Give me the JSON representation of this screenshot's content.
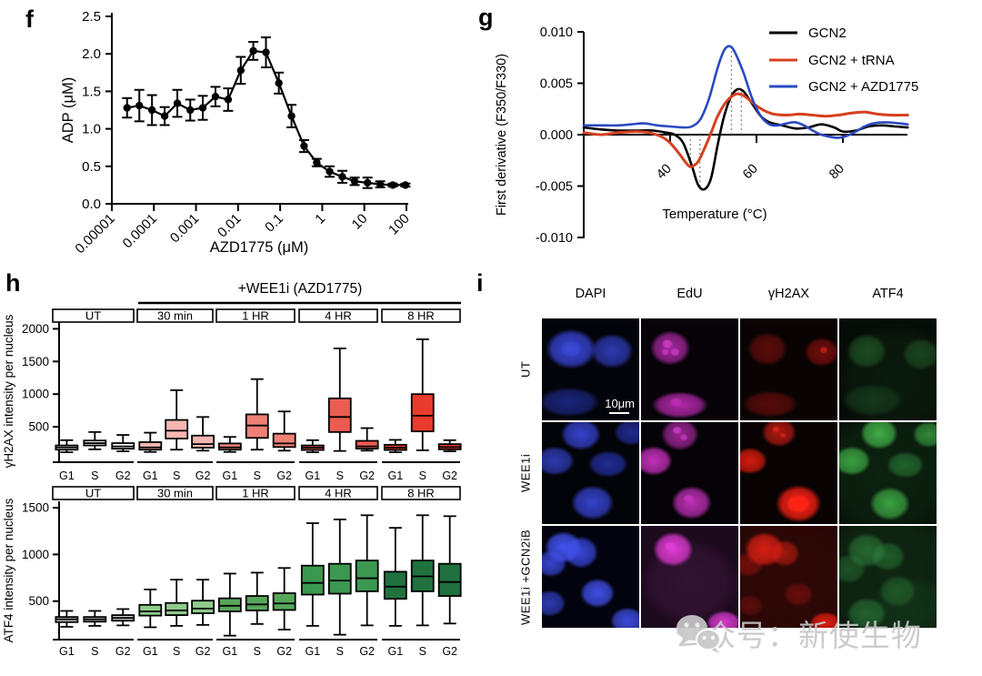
{
  "figure": {
    "panels": {
      "f": {
        "letter": "f"
      },
      "g": {
        "letter": "g"
      },
      "h": {
        "letter": "h"
      },
      "i": {
        "letter": "i"
      }
    }
  },
  "chart_data": [
    {
      "id": "f",
      "type": "scatter",
      "title": "",
      "xlabel": "AZD1775 (μM)",
      "ylabel": "ADP (μM)",
      "x_scale": "log",
      "x_ticks": [
        "0.00001",
        "0.0001",
        "0.001",
        "0.01",
        "0.1",
        "1",
        "10",
        "100"
      ],
      "ylim": [
        0,
        2.5
      ],
      "y_ticks": [
        0,
        0.5,
        1,
        1.5,
        2,
        2.5
      ],
      "points": [
        {
          "x": 2.3e-05,
          "y": 1.28,
          "err": 0.13
        },
        {
          "x": 4.5e-05,
          "y": 1.31,
          "err": 0.21
        },
        {
          "x": 9e-05,
          "y": 1.25,
          "err": 0.2
        },
        {
          "x": 0.00018,
          "y": 1.17,
          "err": 0.12
        },
        {
          "x": 0.00036,
          "y": 1.34,
          "err": 0.18
        },
        {
          "x": 0.00073,
          "y": 1.25,
          "err": 0.14
        },
        {
          "x": 0.00145,
          "y": 1.28,
          "err": 0.16
        },
        {
          "x": 0.0029,
          "y": 1.43,
          "err": 0.13
        },
        {
          "x": 0.0058,
          "y": 1.39,
          "err": 0.15
        },
        {
          "x": 0.0116,
          "y": 1.78,
          "err": 0.18
        },
        {
          "x": 0.023,
          "y": 2.04,
          "err": 0.12
        },
        {
          "x": 0.046,
          "y": 2.02,
          "err": 0.2
        },
        {
          "x": 0.093,
          "y": 1.61,
          "err": 0.14
        },
        {
          "x": 0.186,
          "y": 1.17,
          "err": 0.15
        },
        {
          "x": 0.37,
          "y": 0.77,
          "err": 0.08
        },
        {
          "x": 0.74,
          "y": 0.55,
          "err": 0.05
        },
        {
          "x": 1.5,
          "y": 0.43,
          "err": 0.07
        },
        {
          "x": 3.0,
          "y": 0.36,
          "err": 0.08
        },
        {
          "x": 5.9,
          "y": 0.3,
          "err": 0.05
        },
        {
          "x": 11.9,
          "y": 0.28,
          "err": 0.07
        },
        {
          "x": 23.8,
          "y": 0.26,
          "err": 0.04
        },
        {
          "x": 47.5,
          "y": 0.25,
          "err": 0.02
        },
        {
          "x": 95,
          "y": 0.25,
          "err": 0.02
        }
      ]
    },
    {
      "id": "g",
      "type": "line",
      "title": "",
      "xlabel": "Temperature (°C)",
      "ylabel": "First derivative (F350/F330)",
      "xlim": [
        20,
        95
      ],
      "x_ticks": [
        40,
        60,
        80
      ],
      "ylim": [
        -0.01,
        0.01
      ],
      "y_tick_labels": [
        "0.010",
        "0.005",
        "0.000",
        "-0.005",
        "-0.010"
      ],
      "y_tick_values": [
        0.01,
        0.005,
        0,
        -0.005,
        -0.01
      ],
      "legend_position": "top-right",
      "guides": [
        {
          "x": 44.7,
          "v": -0.0031
        },
        {
          "x": 46.9,
          "v": -0.0053
        },
        {
          "x": 54.2,
          "v": 0.0086
        },
        {
          "x": 56.5,
          "v": 0.0044
        }
      ],
      "series": [
        {
          "name": "GCN2",
          "color": "#000000",
          "points": [
            [
              20,
              0.0007
            ],
            [
              24,
              0.0005
            ],
            [
              28,
              0.0004
            ],
            [
              32,
              0.0004
            ],
            [
              36,
              0.0004
            ],
            [
              39,
              0.0002
            ],
            [
              41,
              0.0
            ],
            [
              43,
              -0.0008
            ],
            [
              45,
              -0.003
            ],
            [
              46.5,
              -0.0049
            ],
            [
              48,
              -0.0053
            ],
            [
              49.5,
              -0.0042
            ],
            [
              51,
              -0.001
            ],
            [
              52.5,
              0.0018
            ],
            [
              54,
              0.0036
            ],
            [
              55.5,
              0.0044
            ],
            [
              57,
              0.0042
            ],
            [
              59,
              0.003
            ],
            [
              61,
              0.0018
            ],
            [
              63,
              0.0012
            ],
            [
              66,
              0.0009
            ],
            [
              69,
              0.0006
            ],
            [
              72,
              0.0007
            ],
            [
              75,
              0.001
            ],
            [
              78,
              0.0007
            ],
            [
              80,
              0.0003
            ],
            [
              83,
              0.0004
            ],
            [
              86,
              0.0008
            ],
            [
              89,
              0.0009
            ],
            [
              92,
              0.0008
            ],
            [
              95,
              0.0007
            ]
          ]
        },
        {
          "name": "GCN2 + tRNA",
          "color": "#d6401f",
          "points": [
            [
              20,
              0.0002
            ],
            [
              24,
              0.0
            ],
            [
              28,
              0.0002
            ],
            [
              32,
              0.0003
            ],
            [
              35,
              0.0002
            ],
            [
              38,
              -0.0002
            ],
            [
              40,
              -0.0008
            ],
            [
              42,
              -0.0018
            ],
            [
              44,
              -0.0029
            ],
            [
              45,
              -0.0031
            ],
            [
              46.5,
              -0.0026
            ],
            [
              48,
              -0.0013
            ],
            [
              49.5,
              0.0002
            ],
            [
              51,
              0.0018
            ],
            [
              53,
              0.0032
            ],
            [
              55,
              0.0039
            ],
            [
              56.5,
              0.0039
            ],
            [
              58,
              0.0035
            ],
            [
              60,
              0.0028
            ],
            [
              62,
              0.0023
            ],
            [
              64,
              0.002
            ],
            [
              67,
              0.0019
            ],
            [
              70,
              0.002
            ],
            [
              73,
              0.0019
            ],
            [
              76,
              0.0018
            ],
            [
              79,
              0.0019
            ],
            [
              82,
              0.0021
            ],
            [
              85,
              0.0022
            ],
            [
              88,
              0.002
            ],
            [
              91,
              0.0019
            ],
            [
              95,
              0.0019
            ]
          ]
        },
        {
          "name": "GCN2 + AZD1775",
          "color": "#2b49c0",
          "points": [
            [
              20,
              0.0009
            ],
            [
              24,
              0.0009
            ],
            [
              28,
              0.0009
            ],
            [
              31,
              0.001
            ],
            [
              34,
              0.0011
            ],
            [
              37,
              0.0009
            ],
            [
              40,
              0.0008
            ],
            [
              43,
              0.0007
            ],
            [
              45,
              0.0008
            ],
            [
              47,
              0.0015
            ],
            [
              49,
              0.0035
            ],
            [
              51,
              0.0065
            ],
            [
              52.5,
              0.0082
            ],
            [
              53.8,
              0.0086
            ],
            [
              55,
              0.008
            ],
            [
              57,
              0.006
            ],
            [
              59,
              0.0035
            ],
            [
              61,
              0.0018
            ],
            [
              63,
              0.001
            ],
            [
              65,
              0.0009
            ],
            [
              67,
              0.0011
            ],
            [
              69,
              0.0012
            ],
            [
              71,
              0.0009
            ],
            [
              73,
              0.0004
            ],
            [
              75,
              0.0
            ],
            [
              77,
              -0.0002
            ],
            [
              79,
              -0.0003
            ],
            [
              81,
              -0.0001
            ],
            [
              83,
              0.0003
            ],
            [
              85,
              0.0008
            ],
            [
              87,
              0.0011
            ],
            [
              90,
              0.0012
            ],
            [
              93,
              0.0011
            ],
            [
              95,
              0.001
            ]
          ]
        }
      ]
    },
    {
      "id": "h-gH2AX",
      "type": "boxplot",
      "title": "+WEE1i (AZD1775)",
      "ylabel": "γH2AX intensity per nucleus",
      "categories": [
        "G1",
        "S",
        "G2"
      ],
      "y_ticks": [
        500,
        1000,
        1500,
        2000
      ],
      "ylim": [
        0,
        2100
      ],
      "groups": [
        {
          "label": "UT",
          "fill": "#ffffff",
          "boxes": [
            [
              110,
              150,
              185,
              215,
              295
            ],
            [
              155,
              215,
              250,
              290,
              420
            ],
            [
              125,
              165,
              200,
              250,
              375
            ]
          ]
        },
        {
          "label": "30 min",
          "fill": "#f6b6b2",
          "boxes": [
            [
              115,
              150,
              185,
              265,
              410
            ],
            [
              150,
              320,
              440,
              605,
              1060
            ],
            [
              135,
              180,
              235,
              365,
              650
            ]
          ]
        },
        {
          "label": "1 HR",
          "fill": "#ef8076",
          "boxes": [
            [
              115,
              150,
              185,
              245,
              345
            ],
            [
              150,
              330,
              520,
              690,
              1230
            ],
            [
              135,
              190,
              245,
              395,
              735
            ]
          ]
        },
        {
          "label": "4 HR",
          "fill": "#ed5c50",
          "boxes": [
            [
              110,
              145,
              180,
              215,
              295
            ],
            [
              130,
              420,
              650,
              935,
              1700
            ],
            [
              135,
              165,
              200,
              285,
              480
            ]
          ]
        },
        {
          "label": "8 HR",
          "fill": "#e93b2d",
          "boxes": [
            [
              110,
              145,
              180,
              225,
              300
            ],
            [
              140,
              430,
              670,
              1000,
              1840
            ],
            [
              125,
              155,
              190,
              235,
              295
            ]
          ]
        }
      ]
    },
    {
      "id": "h-ATF4",
      "type": "boxplot",
      "title": "",
      "ylabel": "ATF4 intensity per nucleus",
      "categories": [
        "G1",
        "S",
        "G2"
      ],
      "y_ticks": [
        500,
        1000,
        1500
      ],
      "ylim": [
        0,
        1650
      ],
      "groups": [
        {
          "label": "UT",
          "fill": "#cfcfcf",
          "boxes": [
            [
              225,
              275,
              305,
              330,
              395
            ],
            [
              235,
              280,
              305,
              330,
              395
            ],
            [
              240,
              290,
              320,
              350,
              415
            ]
          ]
        },
        {
          "label": "30 min",
          "fill": "#8fca8b",
          "boxes": [
            [
              220,
              345,
              390,
              460,
              625
            ],
            [
              235,
              350,
              400,
              480,
              730
            ],
            [
              245,
              370,
              420,
              505,
              730
            ]
          ]
        },
        {
          "label": "1 HR",
          "fill": "#57a75b",
          "boxes": [
            [
              130,
              390,
              450,
              530,
              795
            ],
            [
              255,
              400,
              465,
              555,
              805
            ],
            [
              195,
              405,
              475,
              585,
              855
            ]
          ]
        },
        {
          "label": "4 HR",
          "fill": "#3b9850",
          "boxes": [
            [
              235,
              570,
              695,
              880,
              1335
            ],
            [
              140,
              580,
              720,
              900,
              1375
            ],
            [
              240,
              605,
              745,
              935,
              1420
            ]
          ]
        },
        {
          "label": "8 HR",
          "fill": "#20713f",
          "boxes": [
            [
              235,
              525,
              655,
              815,
              1285
            ],
            [
              240,
              605,
              765,
              935,
              1420
            ],
            [
              260,
              555,
              705,
              900,
              1410
            ]
          ]
        }
      ]
    }
  ],
  "microscopy": {
    "columns": [
      "DAPI",
      "EdU",
      "γH2AX",
      "ATF4"
    ],
    "rows": [
      "UT",
      "WEE1i",
      "WEE1i +GCN2iB"
    ],
    "scale_bar": "10μm"
  },
  "watermark": {
    "icon": "wechat-icon",
    "text": "公众号：新使生物"
  }
}
